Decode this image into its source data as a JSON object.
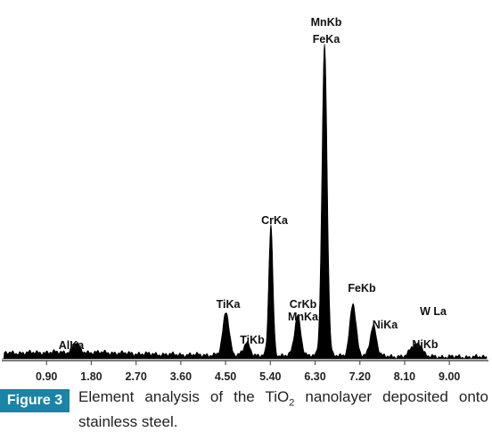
{
  "chart_data": {
    "type": "area",
    "title": "",
    "xlabel": "",
    "ylabel": "",
    "x_ticks": [
      0.9,
      1.8,
      2.7,
      3.6,
      4.5,
      5.4,
      6.3,
      7.2,
      8.1,
      9.0
    ],
    "xlim": [
      0.0,
      9.5
    ],
    "grid": false,
    "legend": "none",
    "fill_color": "#000000",
    "peaks": [
      {
        "label": "AlKa",
        "x": 1.49,
        "intensity": 3
      },
      {
        "label": "TiKa",
        "x": 4.51,
        "intensity": 14
      },
      {
        "label": "TiKb",
        "x": 4.93,
        "intensity": 4
      },
      {
        "label": "CrKa",
        "x": 5.41,
        "intensity": 42
      },
      {
        "label": "CrKb",
        "x": 5.95,
        "intensity": 13
      },
      {
        "label": "MnKa",
        "x": 5.9,
        "intensity": 13
      },
      {
        "label": "MnKb",
        "x": 6.49,
        "intensity": 100
      },
      {
        "label": "FeKa",
        "x": 6.4,
        "intensity": 100
      },
      {
        "label": "FeKb",
        "x": 7.06,
        "intensity": 17
      },
      {
        "label": "NiKa",
        "x": 7.47,
        "intensity": 10
      },
      {
        "label": "NiKb",
        "x": 8.26,
        "intensity": 3
      },
      {
        "label": "W La",
        "x": 8.4,
        "intensity": 4
      }
    ]
  },
  "caption": {
    "figure_label": "Figure 3",
    "text_before": "Element analysis of the TiO",
    "subscript": "2",
    "text_after": " nanolayer deposited onto stainless steel."
  }
}
